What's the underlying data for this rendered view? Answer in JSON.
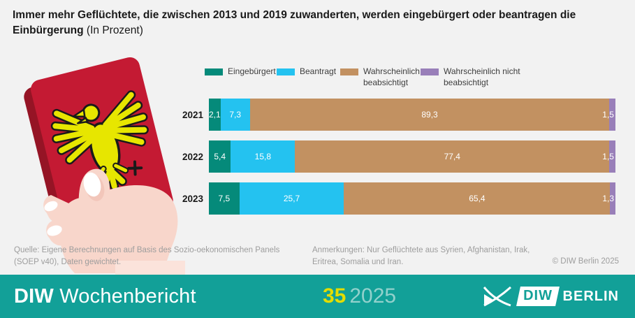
{
  "title": {
    "main": "Immer mehr Geflüchtete, die zwischen 2013 und 2019 zuwanderten, werden eingebürgert oder beantragen die Einbürgerung",
    "suffix": "(In Prozent)"
  },
  "chart_data": {
    "type": "bar",
    "orientation": "horizontal-stacked",
    "unit": "Prozent",
    "legend_position": "top",
    "xlim": [
      0,
      100
    ],
    "grid": false,
    "categories": [
      "2021",
      "2022",
      "2023"
    ],
    "series": [
      {
        "name": "Eingebürgert",
        "color": "#058a7a",
        "values": [
          2.1,
          5.4,
          7.5
        ]
      },
      {
        "name": "Beantragt",
        "color": "#24c2f0",
        "values": [
          7.3,
          15.8,
          25.7
        ]
      },
      {
        "name": "Wahrscheinlich beabsichtigt",
        "color": "#c29161",
        "values": [
          89.3,
          77.4,
          65.4
        ]
      },
      {
        "name": "Wahrscheinlich nicht beabsichtigt",
        "color": "#997fb9",
        "values": [
          1.5,
          1.5,
          1.3
        ]
      }
    ],
    "value_format": "comma-decimal"
  },
  "footnotes": {
    "source": "Quelle: Eigene Berechnungen auf Basis des Sozio-oekonomischen Panels (SOEP v40), Daten gewichtet.",
    "remarks": "Anmerkungen: Nur Geflüchtete aus Syrien, Afghanistan, Irak, Eritrea, Somalia und Iran.",
    "copyright": "© DIW Berlin 2025"
  },
  "footer": {
    "publication_bold": "DIW",
    "publication_rest": "Wochenbericht",
    "issue_number": "35",
    "issue_year": "2025",
    "logo_box_text": "DIW",
    "logo_suffix": "BERLIN"
  },
  "illustration": {
    "label": "Hand mit deutschem Reisepass",
    "passport_red": "#c41a33",
    "passport_dark_red": "#951425",
    "eagle_yellow": "#e7e600",
    "skin": "#f8d6cb",
    "skin_shade": "#f2c6ba",
    "nail": "#ffffff"
  },
  "colors": {
    "background": "#f2f2f2",
    "footer_band": "#12a098",
    "issue_number": "#e3dd00",
    "issue_year": "#92d1cc",
    "footnote_text": "#9d9d9d"
  }
}
